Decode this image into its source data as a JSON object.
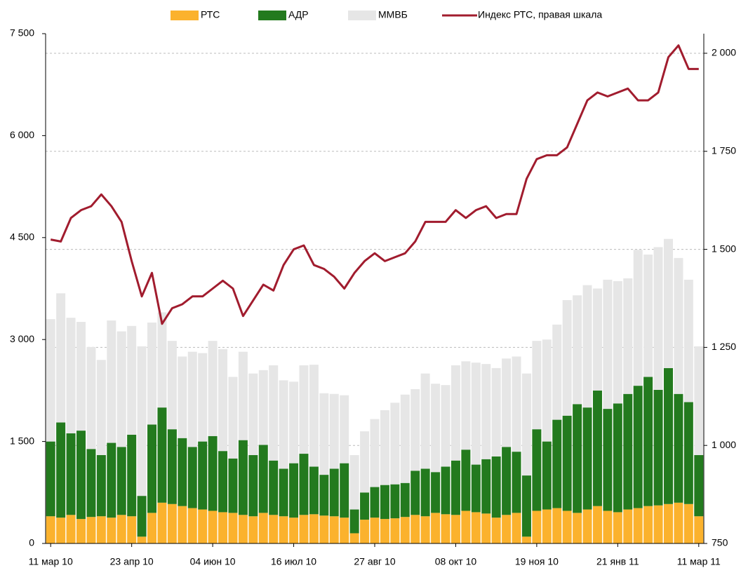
{
  "chart_data": {
    "type": "bar",
    "stacked": true,
    "categories": [
      "11 мар 10",
      null,
      null,
      null,
      null,
      null,
      null,
      null,
      "23 апр 10",
      null,
      null,
      null,
      null,
      null,
      null,
      null,
      "04 июн 10",
      null,
      null,
      null,
      null,
      null,
      null,
      null,
      "16 июл 10",
      null,
      null,
      null,
      null,
      null,
      null,
      null,
      "27 авг 10",
      null,
      null,
      null,
      null,
      null,
      null,
      null,
      "08 окт 10",
      null,
      null,
      null,
      null,
      null,
      null,
      null,
      "19 ноя 10",
      null,
      null,
      null,
      null,
      null,
      null,
      null,
      "21 янв 11",
      null,
      null,
      null,
      null,
      null,
      null,
      null,
      "11 мар 11"
    ],
    "series": [
      {
        "name": "РТС",
        "color": "#fbb22d",
        "values": [
          400,
          380,
          420,
          360,
          390,
          400,
          380,
          420,
          400,
          100,
          450,
          600,
          580,
          550,
          520,
          500,
          480,
          460,
          450,
          420,
          400,
          450,
          420,
          400,
          380,
          420,
          430,
          410,
          400,
          380,
          150,
          350,
          380,
          360,
          370,
          390,
          420,
          400,
          450,
          430,
          420,
          480,
          460,
          440,
          380,
          420,
          450,
          100,
          480,
          500,
          520,
          480,
          450,
          500,
          550,
          480,
          460,
          500,
          520,
          550,
          560,
          580,
          600,
          580,
          400
        ]
      },
      {
        "name": "АДР",
        "color": "#237a1e",
        "values": [
          1100,
          1400,
          1200,
          1300,
          1000,
          900,
          1100,
          1000,
          1200,
          600,
          1300,
          1400,
          1100,
          1000,
          900,
          1000,
          1100,
          900,
          800,
          1100,
          900,
          1000,
          800,
          700,
          800,
          900,
          700,
          600,
          700,
          800,
          350,
          400,
          450,
          500,
          500,
          500,
          650,
          700,
          600,
          700,
          800,
          900,
          700,
          800,
          900,
          1000,
          900,
          900,
          1200,
          1000,
          1300,
          1400,
          1600,
          1500,
          1700,
          1500,
          1600,
          1700,
          1800,
          1900,
          1700,
          2000,
          1600,
          1500,
          900
        ]
      },
      {
        "name": "ММВБ",
        "color": "#e6e6e6",
        "values": [
          1800,
          1900,
          1700,
          1600,
          1500,
          1400,
          1800,
          1700,
          1600,
          2200,
          1500,
          1400,
          1300,
          1200,
          1400,
          1300,
          1400,
          1500,
          1200,
          1300,
          1200,
          1100,
          1400,
          1300,
          1200,
          1300,
          1500,
          1200,
          1100,
          1000,
          800,
          900,
          1000,
          1100,
          1200,
          1300,
          1200,
          1400,
          1300,
          1200,
          1400,
          1300,
          1500,
          1400,
          1300,
          1300,
          1400,
          1500,
          1300,
          1500,
          1400,
          1700,
          1600,
          1800,
          1500,
          1900,
          1800,
          1700,
          2000,
          1800,
          2100,
          1900,
          2000,
          1800,
          1600
        ]
      },
      {
        "name": "Индекс РТС, правая шкала",
        "color": "#a11c2e",
        "type": "line",
        "axis": "y2",
        "values": [
          1525,
          1520,
          1580,
          1600,
          1610,
          1640,
          1610,
          1570,
          1470,
          1380,
          1440,
          1310,
          1350,
          1360,
          1380,
          1380,
          1400,
          1420,
          1400,
          1330,
          1370,
          1410,
          1395,
          1460,
          1500,
          1510,
          1460,
          1450,
          1430,
          1400,
          1440,
          1470,
          1490,
          1470,
          1480,
          1490,
          1520,
          1570,
          1570,
          1570,
          1600,
          1580,
          1600,
          1610,
          1580,
          1590,
          1590,
          1680,
          1730,
          1740,
          1740,
          1760,
          1820,
          1880,
          1900,
          1890,
          1900,
          1910,
          1880,
          1880,
          1900,
          1990,
          2020,
          1960,
          1960
        ]
      }
    ],
    "ylim": [
      0,
      7500
    ],
    "yticks": [
      0,
      {
        "value": 1500,
        "label": "1 500"
      },
      {
        "value": 3000,
        "label": "3 000"
      },
      {
        "value": 4500,
        "label": "4 500"
      },
      {
        "value": 6000,
        "label": "6 000"
      },
      {
        "value": 7500,
        "label": "7 500"
      }
    ],
    "y2lim": [
      750,
      2050
    ],
    "y2ticks": [
      750,
      {
        "value": 1000,
        "label": "1 000"
      },
      {
        "value": 1250,
        "label": "1 250"
      },
      {
        "value": 1500,
        "label": "1 500"
      },
      {
        "value": 1750,
        "label": "1 750"
      },
      {
        "value": 2000,
        "label": "2 000"
      }
    ],
    "grid": "y2"
  }
}
